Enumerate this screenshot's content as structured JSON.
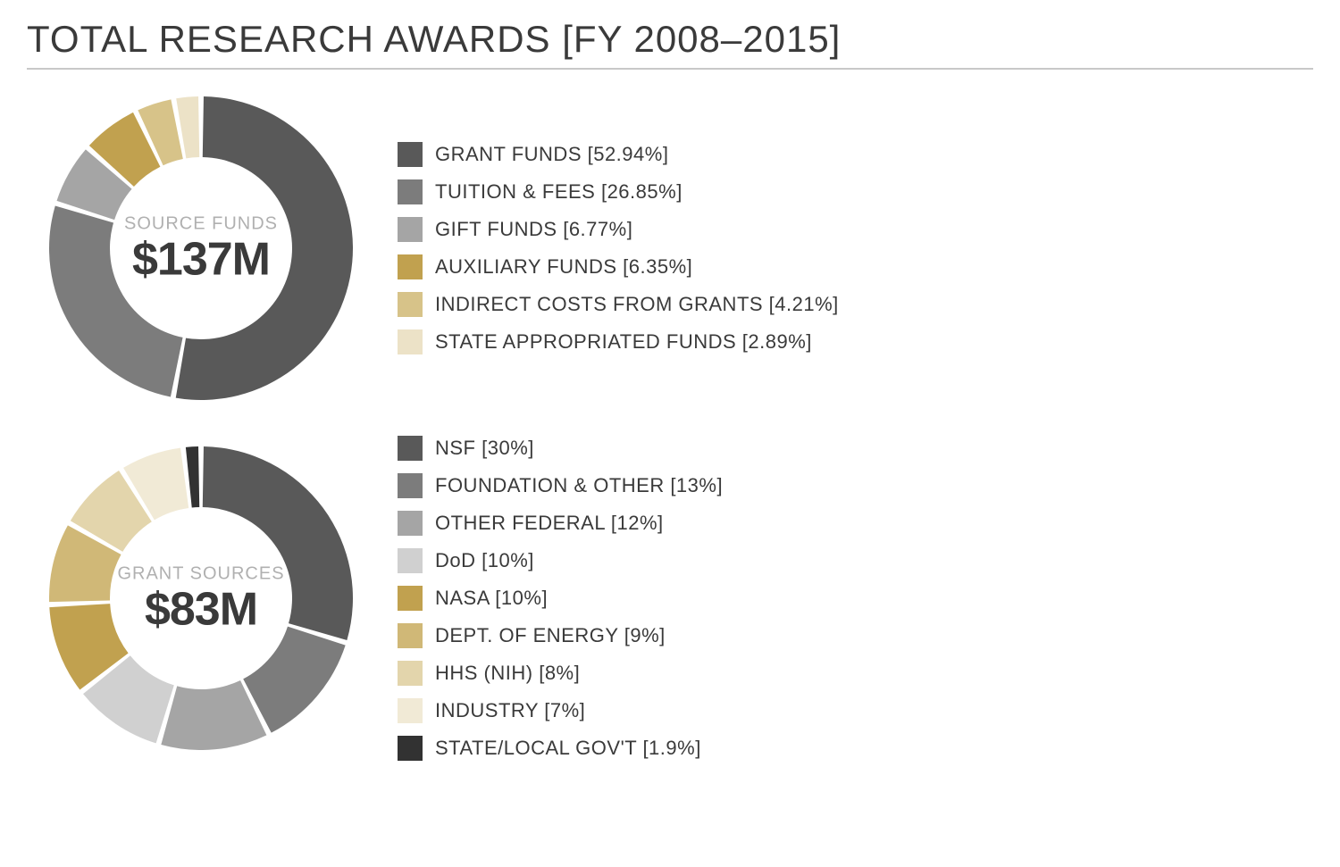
{
  "title": "TOTAL RESEARCH AWARDS [FY 2008–2015]",
  "background_color": "#ffffff",
  "rule_color": "#c8c8c8",
  "title_color": "#3a3a3a",
  "title_fontsize": 42,
  "center_label_color": "#b0b0b0",
  "center_value_color": "#3a3a3a",
  "center_label_fontsize": 20,
  "center_value_fontsize": 52,
  "legend_text_color": "#3a3a3a",
  "legend_fontsize": 22,
  "swatch_size": 28,
  "donut": {
    "outer_radius": 170,
    "inner_radius": 102,
    "gap_deg": 2,
    "start_angle_deg": -90
  },
  "charts": [
    {
      "id": "source-funds",
      "type": "donut",
      "center_label": "SOURCE FUNDS",
      "center_value": "$137M",
      "slices": [
        {
          "label": "GRANT FUNDS [52.94%]",
          "value": 52.94,
          "color": "#595959"
        },
        {
          "label": "TUITION & FEES [26.85%]",
          "value": 26.85,
          "color": "#7c7c7c"
        },
        {
          "label": "GIFT FUNDS [6.77%]",
          "value": 6.77,
          "color": "#a5a5a5"
        },
        {
          "label": "AUXILIARY FUNDS [6.35%]",
          "value": 6.35,
          "color": "#c1a14f"
        },
        {
          "label": "INDIRECT COSTS FROM GRANTS [4.21%]",
          "value": 4.21,
          "color": "#d7c389"
        },
        {
          "label": "STATE APPROPRIATED FUNDS [2.89%]",
          "value": 2.89,
          "color": "#ece2c7"
        }
      ]
    },
    {
      "id": "grant-sources",
      "type": "donut",
      "center_label": "GRANT SOURCES",
      "center_value": "$83M",
      "slices": [
        {
          "label": "NSF [30%]",
          "value": 30,
          "color": "#595959"
        },
        {
          "label": "FOUNDATION & OTHER [13%]",
          "value": 13,
          "color": "#7c7c7c"
        },
        {
          "label": "OTHER FEDERAL [12%]",
          "value": 12,
          "color": "#a5a5a5"
        },
        {
          "label": "DoD [10%]",
          "value": 10,
          "color": "#d0d0d0"
        },
        {
          "label": "NASA [10%]",
          "value": 10,
          "color": "#c1a14f"
        },
        {
          "label": "DEPT. OF ENERGY [9%]",
          "value": 9,
          "color": "#d0b877"
        },
        {
          "label": "HHS (NIH) [8%]",
          "value": 8,
          "color": "#e3d5ac"
        },
        {
          "label": "INDUSTRY [7%]",
          "value": 7,
          "color": "#f1ead6"
        },
        {
          "label": "STATE/LOCAL GOV'T [1.9%]",
          "value": 1.9,
          "color": "#323232"
        }
      ]
    }
  ]
}
